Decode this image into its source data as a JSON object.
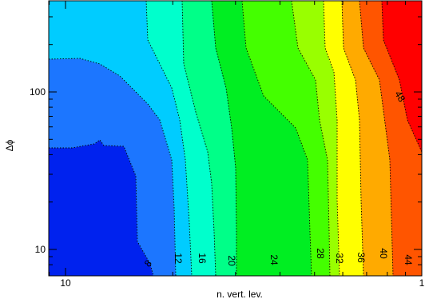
{
  "chart_data": {
    "type": "filled-contour",
    "xlabel": "n. vert. lev.",
    "ylabel": "Δϕ",
    "x_scale": "log",
    "y_scale": "log",
    "xlim": [
      8,
      100
    ],
    "ylim": [
      7.8,
      330
    ],
    "x_tick_labels": [
      "10",
      "1"
    ],
    "y_tick_labels": [
      "10",
      "100"
    ],
    "grid": false,
    "legend": "none",
    "contour_levels": [
      8,
      12,
      16,
      20,
      24,
      28,
      32,
      36,
      40,
      44,
      48
    ],
    "band_colors": [
      "#0022ee",
      "#1c76ff",
      "#00ccff",
      "#00ffcc",
      "#00ff88",
      "#00ee22",
      "#44ff00",
      "#99ff00",
      "#ffff00",
      "#ffaa00",
      "#ff5500",
      "#ff0000"
    ],
    "contour_labels": [
      {
        "text": "8",
        "angle": -50
      },
      {
        "text": "12",
        "angle": 90
      },
      {
        "text": "16",
        "angle": 90
      },
      {
        "text": "20",
        "angle": 90
      },
      {
        "text": "24",
        "angle": 90
      },
      {
        "text": "28",
        "angle": 90
      },
      {
        "text": "32",
        "angle": 90
      },
      {
        "text": "36",
        "angle": 90
      },
      {
        "text": "40",
        "angle": 90
      },
      {
        "text": "44",
        "angle": 90
      },
      {
        "text": "48",
        "angle": 60
      }
    ]
  }
}
